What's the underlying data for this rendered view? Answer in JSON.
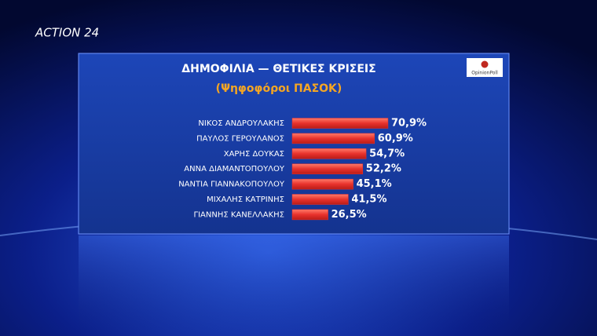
{
  "brand": "ACTION 24",
  "chart_data": {
    "type": "hbar",
    "title": "ΔΗΜΟΦΙΛΙΑ — ΘΕΤΙΚΕΣ ΚΡΙΣΕΙΣ",
    "subtitle": "(Ψηφοφόροι ΠΑΣΟΚ)",
    "source": "OpinionPoll",
    "categories": [
      "ΝΙΚΟΣ ΑΝΔΡΟΥΛΑΚΗΣ",
      "ΠΑΥΛΟΣ ΓΕΡΟΥΛΑΝΟΣ",
      "ΧΑΡΗΣ ΔΟΥΚΑΣ",
      "ΑΝΝΑ ΔΙΑΜΑΝΤΟΠΟΥΛΟΥ",
      "ΝΑΝΤΙΑ ΓΙΑΝΝΑΚΟΠΟΥΛΟΥ",
      "ΜΙΧΑΛΗΣ ΚΑΤΡΙΝΗΣ",
      "ΓΙΑΝΝΗΣ ΚΑΝΕΛΛΑΚΗΣ"
    ],
    "values": [
      70.9,
      60.9,
      54.7,
      52.2,
      45.1,
      41.5,
      26.5
    ],
    "value_labels": [
      "70,9%",
      "60,9%",
      "54,7%",
      "52,2%",
      "45,1%",
      "41,5%",
      "26,5%"
    ],
    "color": "#e8322c"
  }
}
